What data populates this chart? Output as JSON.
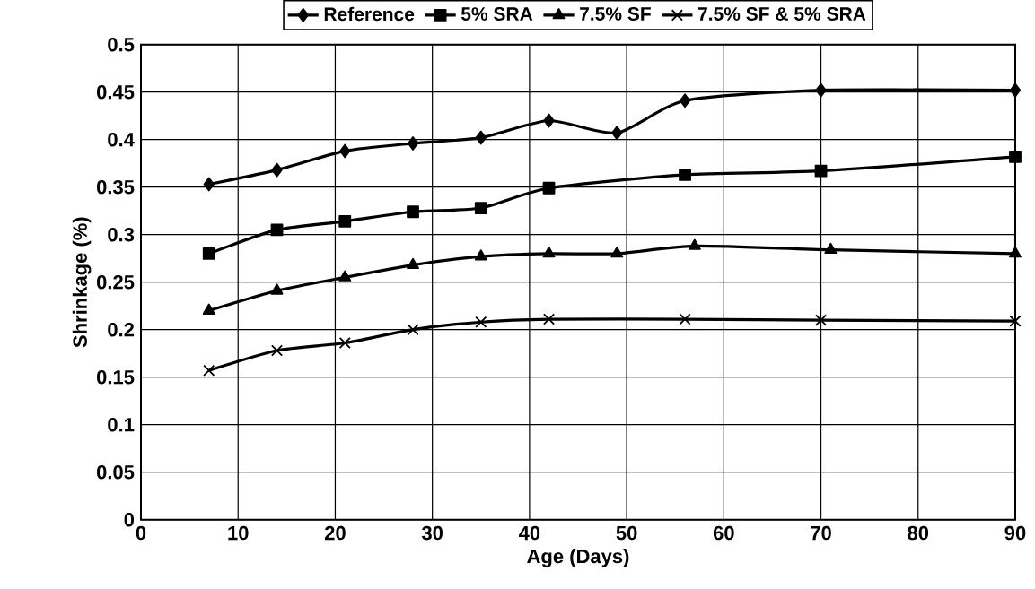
{
  "chart_data": {
    "type": "line",
    "xlabel": "Age (Days)",
    "ylabel": "Shrinkage (%)",
    "xlim": [
      0,
      90
    ],
    "xticks": [
      0,
      10,
      20,
      30,
      40,
      50,
      60,
      70,
      80,
      90
    ],
    "ylim": [
      0,
      0.5
    ],
    "yticks": [
      0,
      0.05,
      0.1,
      0.15,
      0.2,
      0.25,
      0.3,
      0.35,
      0.4,
      0.45,
      0.5
    ],
    "grid": true,
    "legend": "top",
    "line_style": "solid",
    "series": [
      {
        "name": "Reference",
        "color": "#000000",
        "marker": "diamond",
        "x": [
          7,
          14,
          21,
          28,
          35,
          42,
          49,
          56,
          70,
          90
        ],
        "values": [
          0.353,
          0.368,
          0.388,
          0.396,
          0.402,
          0.42,
          0.407,
          0.441,
          0.452,
          0.452
        ]
      },
      {
        "name": "5% SRA",
        "color": "#000000",
        "marker": "square",
        "x": [
          7,
          14,
          21,
          28,
          35,
          42,
          56,
          70,
          90
        ],
        "values": [
          0.28,
          0.305,
          0.314,
          0.324,
          0.328,
          0.349,
          0.363,
          0.367,
          0.382
        ]
      },
      {
        "name": "7.5% SF",
        "color": "#000000",
        "marker": "triangle",
        "x": [
          7,
          14,
          21,
          28,
          35,
          42,
          49,
          57,
          71,
          90
        ],
        "values": [
          0.22,
          0.241,
          0.255,
          0.268,
          0.277,
          0.28,
          0.28,
          0.288,
          0.284,
          0.28
        ]
      },
      {
        "name": "7.5% SF & 5% SRA",
        "color": "#000000",
        "marker": "cross",
        "x": [
          7,
          14,
          21,
          28,
          35,
          42,
          56,
          70,
          90
        ],
        "values": [
          0.157,
          0.178,
          0.186,
          0.2,
          0.208,
          0.211,
          0.211,
          0.21,
          0.209
        ]
      }
    ]
  }
}
